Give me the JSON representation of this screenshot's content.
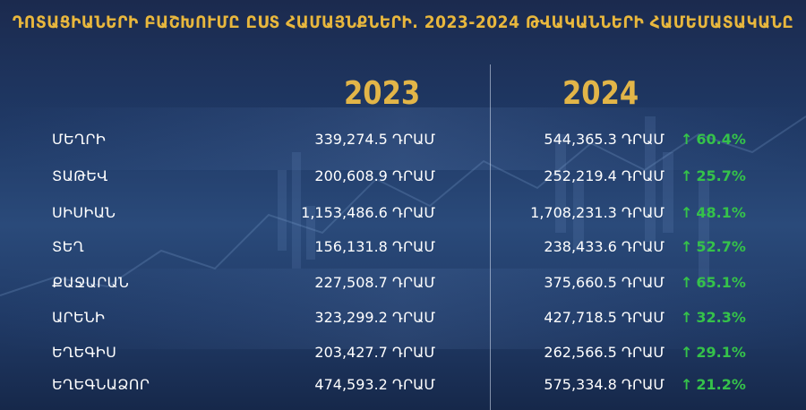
{
  "title": "ԴՈՏԱՑԻԱՆԵՐԻ ԲԱՇԽՈՒՄԸ ԸՍՏ ՀԱՄԱՅՆՔՆԵՐԻ. 2023-2024 ԹՎԱԿԱՆՆԵՐԻ ՀԱՄԵՄԱՏԱԿԱՆԸ",
  "years": {
    "y2023": "2023",
    "y2024": "2024"
  },
  "rows": [
    {
      "region": "ՄԵՂՐԻ",
      "v2023": "339,274.5 ԴՐԱՄ",
      "v2024": "544,365.3 ԴՐԱՄ",
      "change": "60.4%"
    },
    {
      "region": "ՏԱԹԵՎ",
      "v2023": "200,608.9 ԴՐԱՄ",
      "v2024": "252,219.4 ԴՐԱՄ",
      "change": "25.7%"
    },
    {
      "region": "ՍԻՍԻԱՆ",
      "v2023": "1,153,486.6 ԴՐԱՄ",
      "v2024": "1,708,231.3 ԴՐԱՄ",
      "change": "48.1%"
    },
    {
      "region": "ՏԵՂ",
      "v2023": "156,131.8 ԴՐԱՄ",
      "v2024": "238,433.6 ԴՐԱՄ",
      "change": "52.7%"
    },
    {
      "region": "ՔԱՋԱՐԱՆ",
      "v2023": "227,508.7 ԴՐԱՄ",
      "v2024": "375,660.5 ԴՐԱՄ",
      "change": "65.1%"
    },
    {
      "region": "ԱՐԵՆԻ",
      "v2023": "323,299.2 ԴՐԱՄ",
      "v2024": "427,718.5 ԴՐԱՄ",
      "change": "32.3%"
    },
    {
      "region": "ԵՂԵԳԻՍ",
      "v2023": "203,427.7 ԴՐԱՄ",
      "v2024": "262,566.5 ԴՐԱՄ",
      "change": "29.1%"
    },
    {
      "region": "ԵՂԵԳՆԱՁՈՐ",
      "v2023": "474,593.2 ԴՐԱՄ",
      "v2024": "575,334.8 ԴՐԱՄ",
      "change": "21.2%"
    }
  ],
  "icons": {
    "increase": "arrow-up-icon"
  },
  "colors": {
    "title": "#e8b73d",
    "year": "#e2b548",
    "increase": "#35c24a",
    "text": "#ffffff",
    "background": "#1f3864"
  }
}
